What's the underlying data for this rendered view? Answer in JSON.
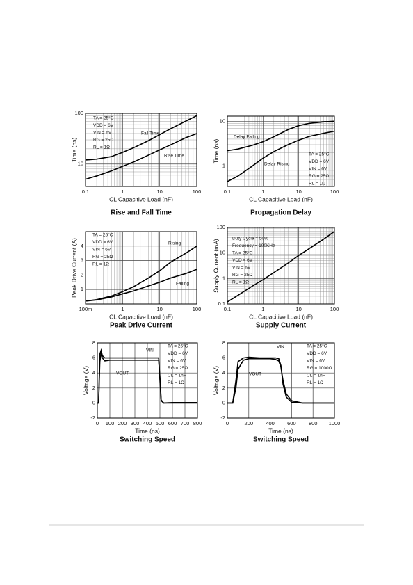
{
  "chart_data": [
    {
      "type": "line",
      "title": "Rise and Fall Time",
      "xlabel": "CL Capacitive Load (nF)",
      "ylabel": "Time (ns)",
      "xscale": "log",
      "yscale": "log",
      "grid": true,
      "xlim": [
        0.1,
        100
      ],
      "xticks": [
        0.1,
        1,
        10,
        100
      ],
      "ylim": [
        3.6,
        100
      ],
      "yticks": [
        10,
        100
      ],
      "annotations": [
        "TA = 25°C",
        "VDD = 6V",
        "VIN = 6V",
        "RG = 25Ω",
        "RL = 1Ω"
      ],
      "x": [
        0.1,
        0.2,
        0.5,
        1,
        2,
        5,
        10,
        20,
        50,
        100
      ],
      "series": [
        {
          "name": "Fall Time",
          "color": "#000000",
          "values": [
            12,
            12.5,
            14,
            17,
            21,
            29,
            38,
            50,
            70,
            90
          ]
        },
        {
          "name": "Rise Time",
          "color": "#000000",
          "values": [
            5,
            5.8,
            7.3,
            9,
            11,
            15,
            19,
            24,
            33,
            40
          ]
        }
      ]
    },
    {
      "type": "line",
      "title": "Propagation Delay",
      "xlabel": "CL Capacitive Load (nF)",
      "ylabel": "Time (ns)",
      "xscale": "log",
      "yscale": "log",
      "grid": true,
      "xlim": [
        0.1,
        100
      ],
      "xticks": [
        0.1,
        1,
        10,
        100
      ],
      "ylim": [
        0.35,
        13
      ],
      "yticks": [
        1,
        10
      ],
      "annotations": [
        "TA = 25°C",
        "VDD = 6V",
        "VIN = 6V",
        "RG = 25Ω",
        "RL = 1Ω"
      ],
      "x": [
        0.1,
        0.2,
        0.5,
        1,
        2,
        5,
        10,
        20,
        50,
        100
      ],
      "series": [
        {
          "name": "Delay Falling",
          "color": "#000000",
          "values": [
            2.2,
            2.4,
            2.9,
            3.5,
            4.5,
            6.5,
            8,
            9,
            9.7,
            10
          ]
        },
        {
          "name": "Delay Rising",
          "color": "#000000",
          "values": [
            0.45,
            0.6,
            1.0,
            1.5,
            2.1,
            3.0,
            3.8,
            4.6,
            5.4,
            6
          ]
        }
      ]
    },
    {
      "type": "line",
      "title": "Peak Drive Current",
      "xlabel": "CL Capacitive Load (nF)",
      "ylabel": "Peak Drive Current (A)",
      "xscale": "log",
      "yscale": "linear",
      "grid": true,
      "xlim": [
        0.1,
        100
      ],
      "xticks": [
        {
          "value": 0.1,
          "label": "100m"
        },
        1,
        10,
        100
      ],
      "ylim": [
        0,
        5
      ],
      "yticks": [
        1,
        2,
        3,
        4
      ],
      "annotations": [
        "TA = 25°C",
        "VDD = 6V",
        "VIN = 6V",
        "RG = 25Ω",
        "RL = 1Ω"
      ],
      "x": [
        0.1,
        0.2,
        0.5,
        1,
        2,
        5,
        10,
        20,
        50,
        100
      ],
      "series": [
        {
          "name": "Rising",
          "color": "#000000",
          "values": [
            0.2,
            0.3,
            0.55,
            0.85,
            1.2,
            1.8,
            2.3,
            2.9,
            3.5,
            4.0
          ]
        },
        {
          "name": "Falling",
          "color": "#000000",
          "values": [
            0.2,
            0.28,
            0.48,
            0.7,
            0.9,
            1.25,
            1.5,
            1.8,
            2.1,
            2.4
          ]
        }
      ]
    },
    {
      "type": "line",
      "title": "Supply Current",
      "xlabel": "CL Capacitive Load (nF)",
      "ylabel": "Supply Current (mA)",
      "xscale": "log",
      "yscale": "log",
      "grid": true,
      "xlim": [
        0.1,
        100
      ],
      "xticks": [
        0.1,
        1,
        10,
        100
      ],
      "ylim": [
        0.1,
        100
      ],
      "yticks": [
        0.1,
        1,
        10,
        100
      ],
      "annotations": [
        "Duty Cycle = 50%",
        "Frequency = 100KHz",
        "TA = 25°C",
        "VDD = 6V",
        "VIN = 6V",
        "RG = 25Ω",
        "RL = 1Ω"
      ],
      "x": [
        0.1,
        0.2,
        0.5,
        1,
        2,
        5,
        10,
        20,
        50,
        100
      ],
      "color": "#000000",
      "values": [
        0.12,
        0.22,
        0.5,
        0.9,
        1.7,
        4,
        8,
        15,
        35,
        70
      ]
    },
    {
      "type": "line",
      "title": "Switching Speed",
      "xlabel": "Time (ns)",
      "ylabel": "Voltage (V)",
      "xscale": "linear",
      "yscale": "linear",
      "grid": true,
      "xlim": [
        0,
        800
      ],
      "xticks": [
        0,
        100,
        200,
        300,
        400,
        500,
        600,
        700,
        800
      ],
      "ylim": [
        -2,
        8
      ],
      "yticks": [
        -2,
        0,
        2,
        4,
        6,
        8
      ],
      "annotations": [
        "TA = 25°C",
        "VDD = 6V",
        "VIN = 6V",
        "RG = 25Ω",
        "CL = 1nF",
        "RL = 1Ω"
      ],
      "x": [
        0,
        10,
        20,
        30,
        40,
        60,
        100,
        200,
        300,
        400,
        490,
        500,
        510,
        530,
        600,
        700,
        800
      ],
      "series": [
        {
          "name": "VIN",
          "color": "#000000",
          "values": [
            0,
            0,
            6.5,
            7.0,
            6.3,
            6.0,
            6.0,
            6.0,
            6.0,
            6.0,
            6.0,
            3,
            0.3,
            0,
            0,
            0,
            0
          ]
        },
        {
          "name": "VOUT",
          "color": "#000000",
          "values": [
            0,
            0,
            5.5,
            6.6,
            6.0,
            5.6,
            5.7,
            5.7,
            5.7,
            5.7,
            5.7,
            3.5,
            0.4,
            0,
            0.05,
            0.05,
            0.05
          ]
        }
      ]
    },
    {
      "type": "line",
      "title": "Switching Speed",
      "xlabel": "Time (ns)",
      "ylabel": "Voltage (V)",
      "xscale": "linear",
      "yscale": "linear",
      "grid": true,
      "xlim": [
        0,
        1000
      ],
      "xticks": [
        0,
        200,
        400,
        600,
        800,
        1000
      ],
      "ylim": [
        -2,
        8
      ],
      "yticks": [
        -2,
        0,
        2,
        4,
        6,
        8
      ],
      "annotations": [
        "TA = 25°C",
        "VDD = 6V",
        "VIN = 6V",
        "RG = 1000Ω",
        "CL = 1nF",
        "RL = 1Ω"
      ],
      "x": [
        0,
        50,
        80,
        100,
        150,
        200,
        300,
        400,
        450,
        480,
        500,
        520,
        550,
        600,
        700,
        800,
        1000
      ],
      "series": [
        {
          "name": "VIN",
          "color": "#000000",
          "values": [
            0,
            0,
            3,
            5.5,
            6.0,
            6.1,
            6.0,
            6.0,
            6.0,
            5.9,
            5,
            2.5,
            0.8,
            0.1,
            0,
            0,
            0
          ]
        },
        {
          "name": "VOUT",
          "color": "#000000",
          "values": [
            0,
            0,
            2,
            4.5,
            5.7,
            5.9,
            5.9,
            5.9,
            5.8,
            5.6,
            4.8,
            3.0,
            1.2,
            0.3,
            0,
            0,
            0
          ]
        }
      ]
    }
  ]
}
